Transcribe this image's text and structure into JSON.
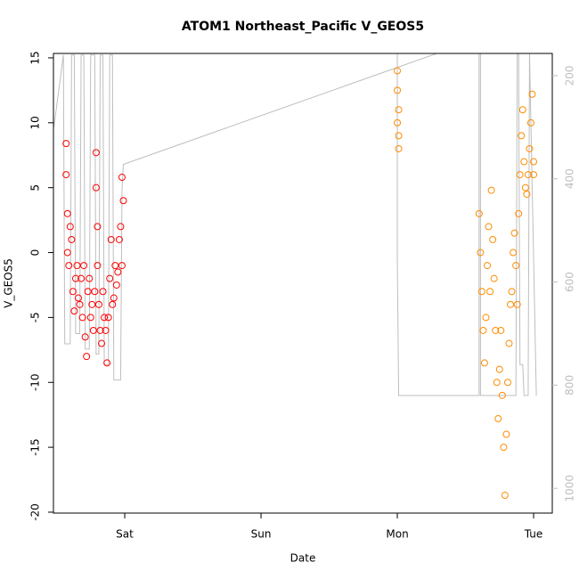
{
  "chart_data": {
    "type": "scatter",
    "title": "ATOM1 Northeast_Pacific V_GEOS5",
    "x_label": "Date",
    "y_label": "V_GEOS5",
    "xlim": [
      -0.523,
      3.137
    ],
    "xticks": [
      {
        "value": 0,
        "label": "Sat"
      },
      {
        "value": 1,
        "label": "Sun"
      },
      {
        "value": 2,
        "label": "Mon"
      },
      {
        "value": 3,
        "label": "Tue"
      }
    ],
    "ylim": [
      -20.07,
      15.34
    ],
    "yticks": [
      -20,
      -15,
      -10,
      -5,
      0,
      5,
      10,
      15
    ],
    "y2lim": [
      1048,
      157
    ],
    "y2ticks": [
      200,
      400,
      600,
      800,
      1000
    ],
    "series": [
      {
        "color": "#ff0000",
        "x": [
          -0.43,
          -0.43,
          -0.42,
          -0.42,
          -0.41,
          -0.4,
          -0.39,
          -0.38,
          -0.37,
          -0.36,
          -0.35,
          -0.34,
          -0.33,
          -0.32,
          -0.31,
          -0.3,
          -0.29,
          -0.28,
          -0.27,
          -0.26,
          -0.25,
          -0.24,
          -0.23,
          -0.22,
          -0.21,
          -0.21,
          -0.2,
          -0.2,
          -0.19,
          -0.18,
          -0.17,
          -0.16,
          -0.15,
          -0.14,
          -0.13,
          -0.12,
          -0.11,
          -0.1,
          -0.09,
          -0.08,
          -0.07,
          -0.06,
          -0.05,
          -0.04,
          -0.03,
          -0.02,
          -0.02,
          -0.01
        ],
        "values": [
          8.4,
          6,
          3,
          0,
          -1,
          2,
          1,
          -3,
          -4.5,
          -2,
          -1,
          -3.5,
          -4,
          -2,
          -5,
          -1,
          -6.5,
          -8,
          -3,
          -2,
          -5,
          -4,
          -6,
          -3,
          7.7,
          5,
          2,
          -1,
          -4,
          -6,
          -7,
          -3,
          -5,
          -6,
          -8.5,
          -5,
          -2,
          1,
          -4,
          -3.5,
          -1,
          -2.5,
          -1.5,
          1,
          2,
          -1,
          5.8,
          4
        ]
      },
      {
        "color": "#ff8c00",
        "x": [
          2.0,
          2.0,
          2.0,
          2.01,
          2.01,
          2.01,
          2.6,
          2.61,
          2.62,
          2.63,
          2.64,
          2.65,
          2.66,
          2.67,
          2.68,
          2.69,
          2.7,
          2.71,
          2.72,
          2.73,
          2.74,
          2.75,
          2.76,
          2.77,
          2.78,
          2.79,
          2.8,
          2.81,
          2.82,
          2.83,
          2.84,
          2.85,
          2.86,
          2.87,
          2.88,
          2.89,
          2.9,
          2.91,
          2.92,
          2.93,
          2.94,
          2.95,
          2.96,
          2.97,
          2.98,
          2.99,
          3.0,
          3.0
        ],
        "values": [
          14,
          12.5,
          10,
          9,
          8,
          11,
          3,
          0,
          -3,
          -6,
          -8.5,
          -5,
          -1,
          2,
          -3,
          4.8,
          1,
          -2,
          -6,
          -10,
          -12.8,
          -9,
          -6,
          -11,
          -15,
          -18.7,
          -14,
          -10,
          -7,
          -4,
          -3,
          0,
          1.5,
          -1,
          -4,
          3,
          6,
          9,
          11,
          7,
          5,
          4.5,
          6,
          8,
          10,
          12.2,
          6,
          7
        ]
      },
      {
        "color": "#bebebe",
        "type": "line",
        "axis": "y2",
        "x": [
          -0.52,
          -0.45,
          -0.44,
          -0.4,
          -0.39,
          -0.37,
          -0.36,
          -0.33,
          -0.32,
          -0.3,
          -0.29,
          -0.26,
          -0.25,
          -0.22,
          -0.21,
          -0.19,
          -0.18,
          -0.16,
          -0.15,
          -0.12,
          -0.11,
          -0.09,
          -0.08,
          -0.03,
          -0.02,
          -0.01,
          2.29,
          2.29,
          2.0,
          2.0,
          2.01,
          2.6,
          2.6,
          2.61,
          2.61,
          2.87,
          2.88,
          2.89,
          2.9,
          2.92,
          2.93,
          2.96,
          2.97,
          3.02
        ],
        "values": [
          300,
          160,
          720,
          720,
          160,
          160,
          700,
          700,
          160,
          160,
          730,
          730,
          160,
          160,
          740,
          740,
          160,
          160,
          760,
          760,
          160,
          160,
          790,
          790,
          420,
          372,
          157,
          null,
          157,
          560,
          820,
          820,
          157,
          157,
          820,
          820,
          157,
          157,
          760,
          760,
          820,
          820,
          157,
          820
        ]
      }
    ]
  }
}
